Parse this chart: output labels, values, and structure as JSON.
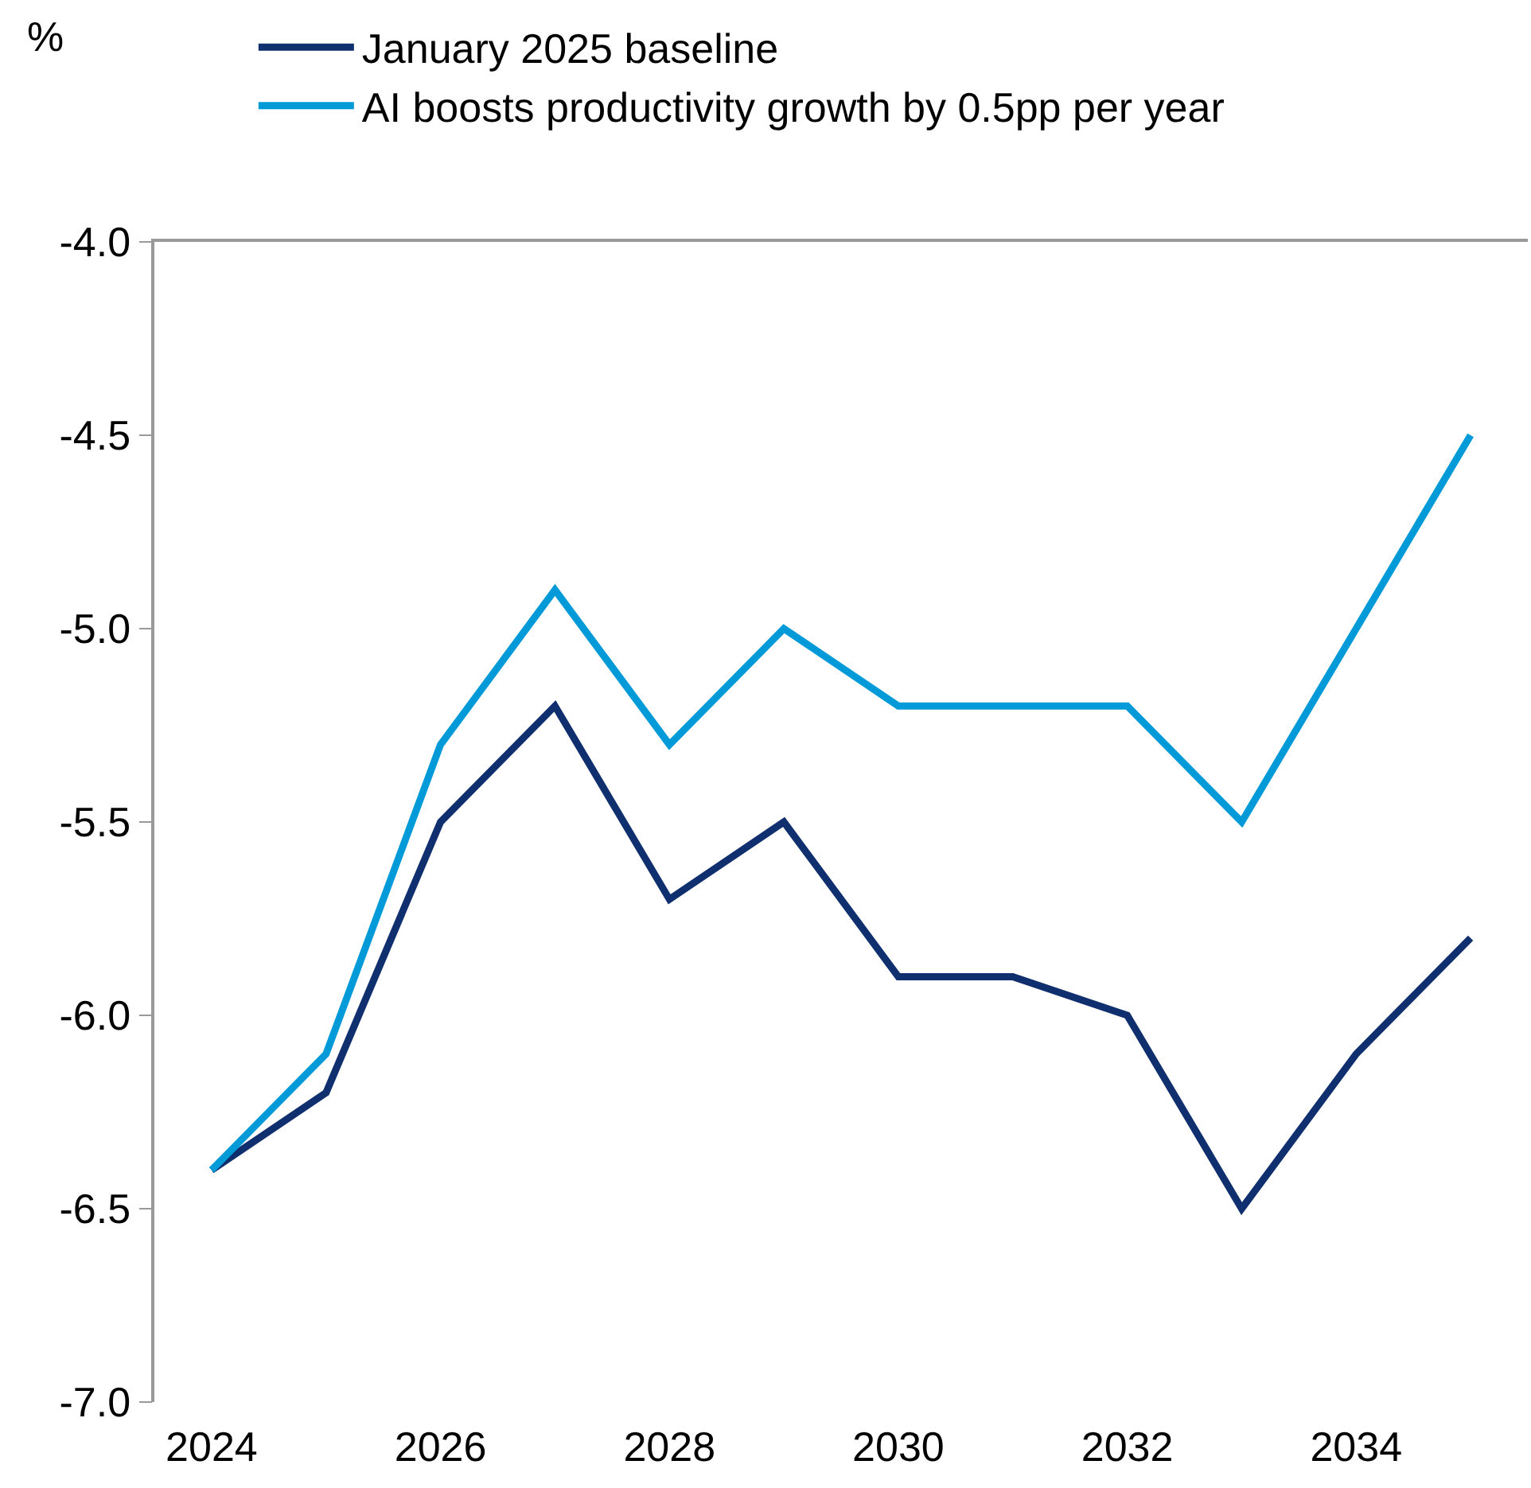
{
  "chart_data": {
    "type": "line",
    "ylabel": "%",
    "x": [
      2024,
      2025,
      2026,
      2027,
      2028,
      2029,
      2030,
      2031,
      2032,
      2033,
      2034,
      2035
    ],
    "series": [
      {
        "name": "January 2025 baseline",
        "color": "#0f2f6e",
        "values": [
          -6.4,
          -6.2,
          -5.5,
          -5.2,
          -5.7,
          -5.5,
          -5.9,
          -5.9,
          -6.0,
          -6.5,
          -6.1,
          -5.8
        ]
      },
      {
        "name": "AI boosts productivity growth by 0.5pp per year",
        "color": "#009ad8",
        "values": [
          -6.4,
          -6.1,
          -5.3,
          -4.9,
          -5.3,
          -5.0,
          -5.2,
          -5.2,
          -5.2,
          -5.5,
          -5.0,
          -4.5
        ]
      }
    ],
    "xlim": [
      2023.5,
      2035.5
    ],
    "xticks": [
      2024,
      2026,
      2028,
      2030,
      2032,
      2034
    ],
    "ylim": [
      -7.0,
      -4.0
    ],
    "yticks": [
      {
        "value": -7,
        "label": "-7.0"
      },
      {
        "value": -6.5,
        "label": "-6.5"
      },
      {
        "value": -6,
        "label": "-6.0"
      },
      {
        "value": -5.5,
        "label": "-5.5"
      },
      {
        "value": -5,
        "label": "-5.0"
      },
      {
        "value": -4.5,
        "label": "-4.5"
      },
      {
        "value": -4,
        "label": "-4.0"
      }
    ],
    "grid": false,
    "legend": "top left",
    "marker": "none",
    "line_style": "solid"
  }
}
